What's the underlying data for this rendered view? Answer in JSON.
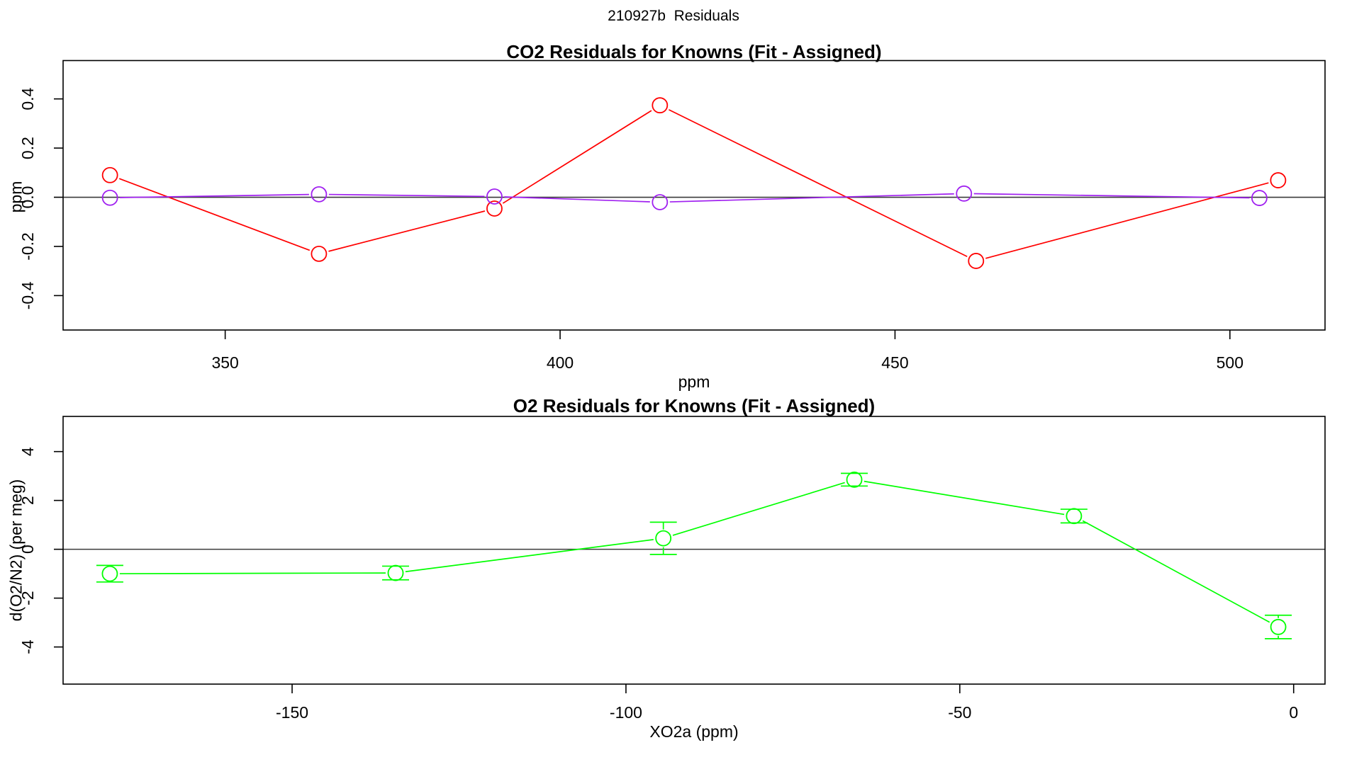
{
  "page_title": "210927b  Residuals",
  "charts": [
    {
      "title": "CO2 Residuals for Knowns (Fit - Assigned)",
      "xlabel": "ppm",
      "ylabel": "ppm",
      "type": "line",
      "xlim": [
        325.8,
        514.2
      ],
      "ylim": [
        -0.54,
        0.556
      ],
      "xticks": [
        350,
        400,
        450,
        500
      ],
      "yticks": [
        -0.4,
        -0.2,
        0.0,
        0.2,
        0.4
      ],
      "ytick_format": "fixed1",
      "zero_line": true,
      "marker": "open-circle",
      "series": [
        {
          "name": "co2-residual-fit-red",
          "color": "#FF0000",
          "x": [
            332.8,
            364.0,
            390.2,
            414.9,
            462.1,
            507.2
          ],
          "y": [
            0.09,
            -0.23,
            -0.046,
            0.374,
            -0.259,
            0.069
          ]
        },
        {
          "name": "co2-residual-fit-purple",
          "color": "#A020F0",
          "x": [
            332.8,
            364.0,
            390.2,
            414.9,
            460.3,
            504.4
          ],
          "y": [
            -0.002,
            0.012,
            0.003,
            -0.02,
            0.015,
            -0.003
          ]
        }
      ]
    },
    {
      "title": "O2 Residuals for Knowns (Fit - Assigned)",
      "xlabel": "XO2a (ppm)",
      "ylabel": "d(O2/N2) (per meg)",
      "type": "line",
      "xlim": [
        -184.3,
        4.7
      ],
      "ylim": [
        -5.52,
        5.44
      ],
      "xticks": [
        -150,
        -100,
        -50,
        0
      ],
      "yticks": [
        -4,
        -2,
        0,
        2,
        4
      ],
      "ytick_format": "int",
      "zero_line": true,
      "marker": "open-circle",
      "series": [
        {
          "name": "o2-residuals-green",
          "color": "#00FF00",
          "x": [
            -177.3,
            -134.5,
            -94.4,
            -65.8,
            -32.9,
            -2.3
          ],
          "y": [
            -1.0,
            -0.97,
            0.45,
            2.85,
            1.36,
            -3.18
          ],
          "yerr": [
            0.34,
            0.28,
            0.66,
            0.26,
            0.28,
            0.48
          ]
        }
      ]
    }
  ]
}
